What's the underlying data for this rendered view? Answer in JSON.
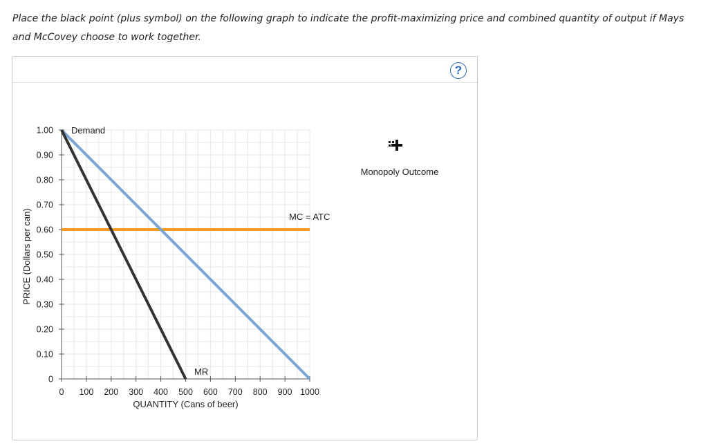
{
  "instructions": "Place the black point (plus symbol) on the following graph to indicate the profit-maximizing price and combined quantity of output if Mays and McCovey choose to work together.",
  "help_icon": "?",
  "palette": {
    "label": "Monopoly Outcome",
    "icon": "plus-point-icon"
  },
  "colors": {
    "demand": "#7aa6d6",
    "mr": "#333333",
    "mc": "#f09a2a",
    "grid": "#e6e6e6",
    "help": "#2b6cb8"
  },
  "chart_data": {
    "type": "line",
    "title": "",
    "xlabel": "QUANTITY (Cans of beer)",
    "ylabel": "PRICE (Dollars per can)",
    "xlim": [
      0,
      1000
    ],
    "ylim": [
      0,
      1.0
    ],
    "x_ticks": [
      0,
      100,
      200,
      300,
      400,
      500,
      600,
      700,
      800,
      900,
      1000
    ],
    "x_tick_labels": [
      "0",
      "100",
      "200",
      "300",
      "400",
      "500",
      "600",
      "700",
      "800",
      "900",
      "1000"
    ],
    "y_ticks": [
      0,
      0.1,
      0.2,
      0.3,
      0.4,
      0.5,
      0.6,
      0.7,
      0.8,
      0.9,
      1.0
    ],
    "y_tick_labels": [
      "0",
      "0.10",
      "0.20",
      "0.30",
      "0.40",
      "0.50",
      "0.60",
      "0.70",
      "0.80",
      "0.90",
      "1.00"
    ],
    "grid": true,
    "series": [
      {
        "name": "Demand",
        "x": [
          0,
          1000
        ],
        "y": [
          1.0,
          0.0
        ],
        "color": "#7aa6d6"
      },
      {
        "name": "MR",
        "x": [
          0,
          500
        ],
        "y": [
          1.0,
          0.0
        ],
        "color": "#333333"
      },
      {
        "name": "MC = ATC",
        "x": [
          0,
          1000
        ],
        "y": [
          0.6,
          0.6
        ],
        "color": "#f09a2a"
      }
    ],
    "annotations": [
      {
        "text": "Demand",
        "series": "Demand"
      },
      {
        "text": "MR",
        "series": "MR"
      },
      {
        "text": "MC = ATC",
        "series": "MC = ATC"
      }
    ]
  }
}
